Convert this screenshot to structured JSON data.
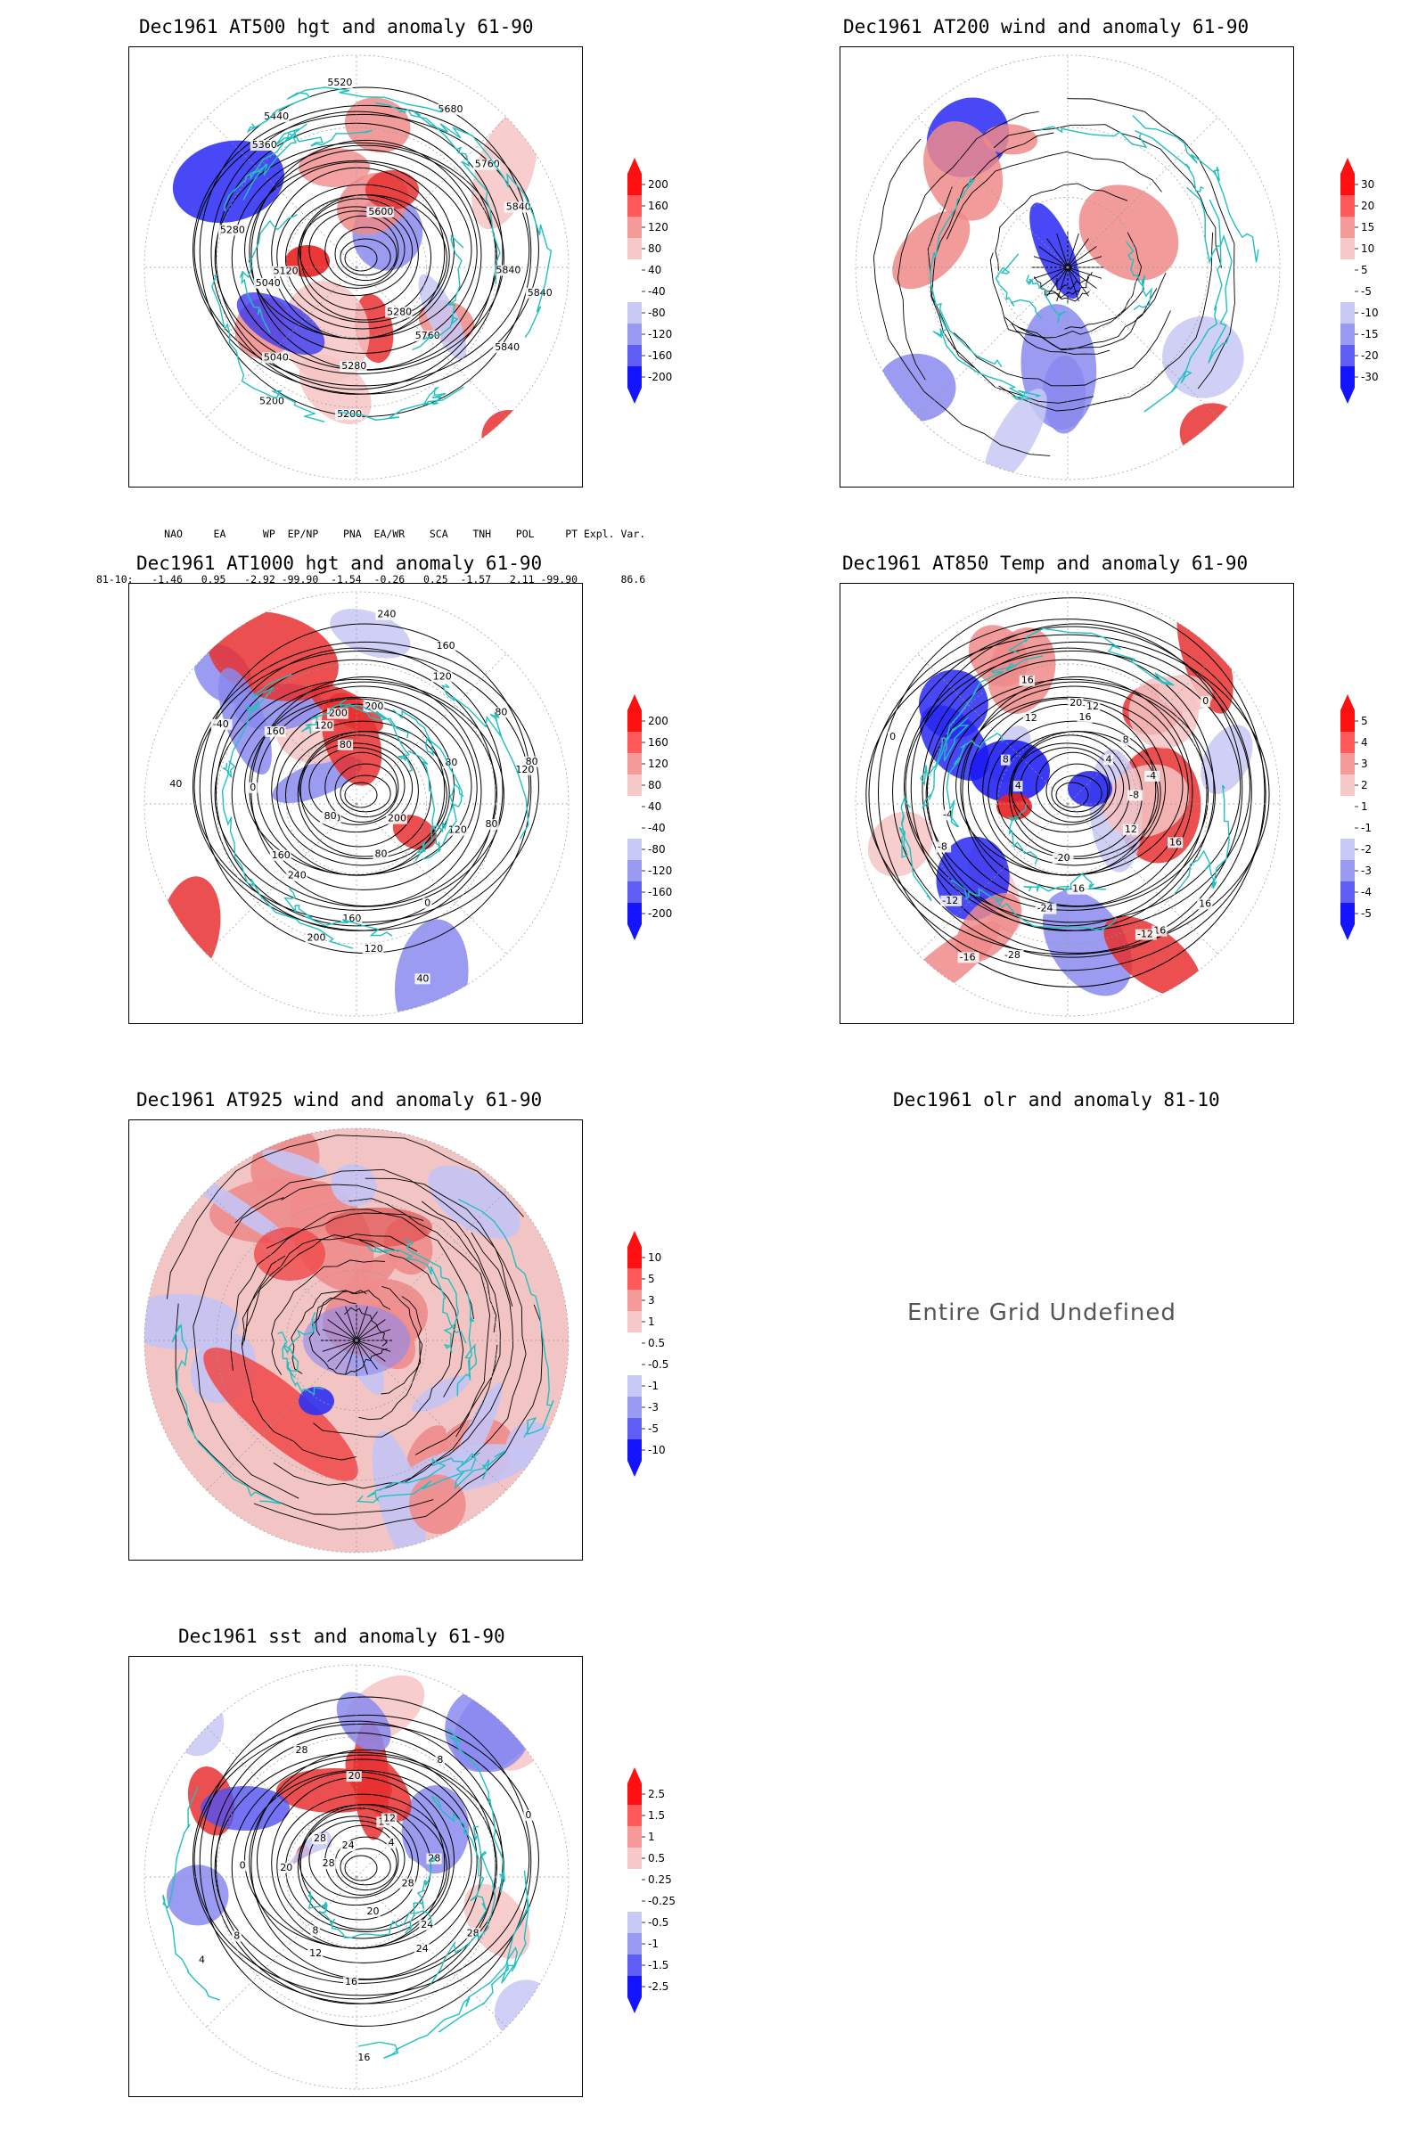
{
  "panels": [
    {
      "id": "at500",
      "title": "Dec1961 AT500 hgt and anomaly 61-90",
      "kind": "hgt",
      "contour_labels": [
        "5840",
        "5840",
        "5760",
        "5280",
        "5280",
        "5200",
        "5200",
        "5040",
        "5040",
        "5120",
        "5280",
        "5360",
        "5440",
        "5520",
        "5600",
        "5680",
        "5760",
        "5840",
        "5840"
      ],
      "colorbar": [
        "200",
        "160",
        "120",
        "80",
        "40",
        "-40",
        "-80",
        "-120",
        "-160",
        "-200"
      ]
    },
    {
      "id": "at200",
      "title": "Dec1961 AT200 wind and anomaly 61-90",
      "kind": "wind",
      "contour_labels": [],
      "colorbar": [
        "30",
        "20",
        "15",
        "10",
        "5",
        "-5",
        "-10",
        "-15",
        "-20",
        "-30"
      ]
    },
    {
      "id": "at1000",
      "title": "Dec1961 AT1000 hgt and anomaly 61-90",
      "kind": "hgt",
      "contour_labels": [
        "80",
        "120",
        "200",
        "0",
        "40",
        "80",
        "120",
        "160",
        "200",
        "240",
        "160",
        "120",
        "80",
        "40",
        "0",
        "-40",
        "160",
        "120",
        "80",
        "200",
        "240",
        "200",
        "160",
        "120",
        "80",
        "80",
        "80",
        "120"
      ],
      "colorbar": [
        "200",
        "160",
        "120",
        "80",
        "40",
        "-40",
        "-80",
        "-120",
        "-160",
        "-200"
      ]
    },
    {
      "id": "at850",
      "title": "Dec1961 AT850 Temp and anomaly 61-90",
      "kind": "temp",
      "contour_labels": [
        "16",
        "12",
        "16",
        "16",
        "-12",
        "-16",
        "-20",
        "-24",
        "-28",
        "-16",
        "-12",
        "-8",
        "-4",
        "0",
        "4",
        "8",
        "12",
        "16",
        "20",
        "16",
        "12",
        "8",
        "4",
        "0",
        "-4",
        "-8"
      ],
      "colorbar": [
        "5",
        "4",
        "3",
        "2",
        "1",
        "-1",
        "-2",
        "-3",
        "-4",
        "-5"
      ]
    },
    {
      "id": "at925",
      "title": "Dec1961 AT925 wind and anomaly 61-90",
      "kind": "wind",
      "contour_labels": [],
      "colorbar": [
        "10",
        "5",
        "3",
        "1",
        "0.5",
        "-0.5",
        "-1",
        "-3",
        "-5",
        "-10"
      ]
    },
    {
      "id": "olr",
      "title": "Dec1961 olr and anomaly 81-10",
      "kind": "undefined",
      "message": "Entire Grid Undefined"
    },
    {
      "id": "sst",
      "title": "Dec1961 sst and anomaly 61-90",
      "kind": "sst",
      "contour_labels": [
        "28",
        "28",
        "24",
        "24",
        "20",
        "16",
        "16",
        "12",
        "8",
        "8",
        "4",
        "0",
        "20",
        "28",
        "28",
        "28",
        "24",
        "20",
        "16",
        "12",
        "8",
        "4",
        "0",
        "28"
      ],
      "colorbar": [
        "2.5",
        "1.5",
        "1",
        "0.5",
        "0.25",
        "-0.25",
        "-0.5",
        "-1",
        "-1.5",
        "-2.5"
      ]
    }
  ],
  "index_table": {
    "headers": [
      "NAO",
      "EA",
      "WP",
      "EP/NP",
      "PNA",
      "EA/WR",
      "SCA",
      "TNH",
      "POL",
      "PT",
      "Expl. Var."
    ],
    "row_label": "81-10:",
    "values": [
      "-1.46",
      "0.95",
      "-2.92",
      "-99.90",
      "-1.54",
      "-0.26",
      "0.25",
      "-1.57",
      "2.11",
      "-99.90",
      "86.6"
    ]
  },
  "colors": {
    "positive_strong": "#ff0000",
    "positive_mid": "#f08080",
    "positive_light": "#f6c6c6",
    "negative_light": "#c8c8f6",
    "negative_mid": "#8080f0",
    "negative_strong": "#0000ff",
    "coastline": "#20c0c0",
    "contour": "#000000"
  }
}
